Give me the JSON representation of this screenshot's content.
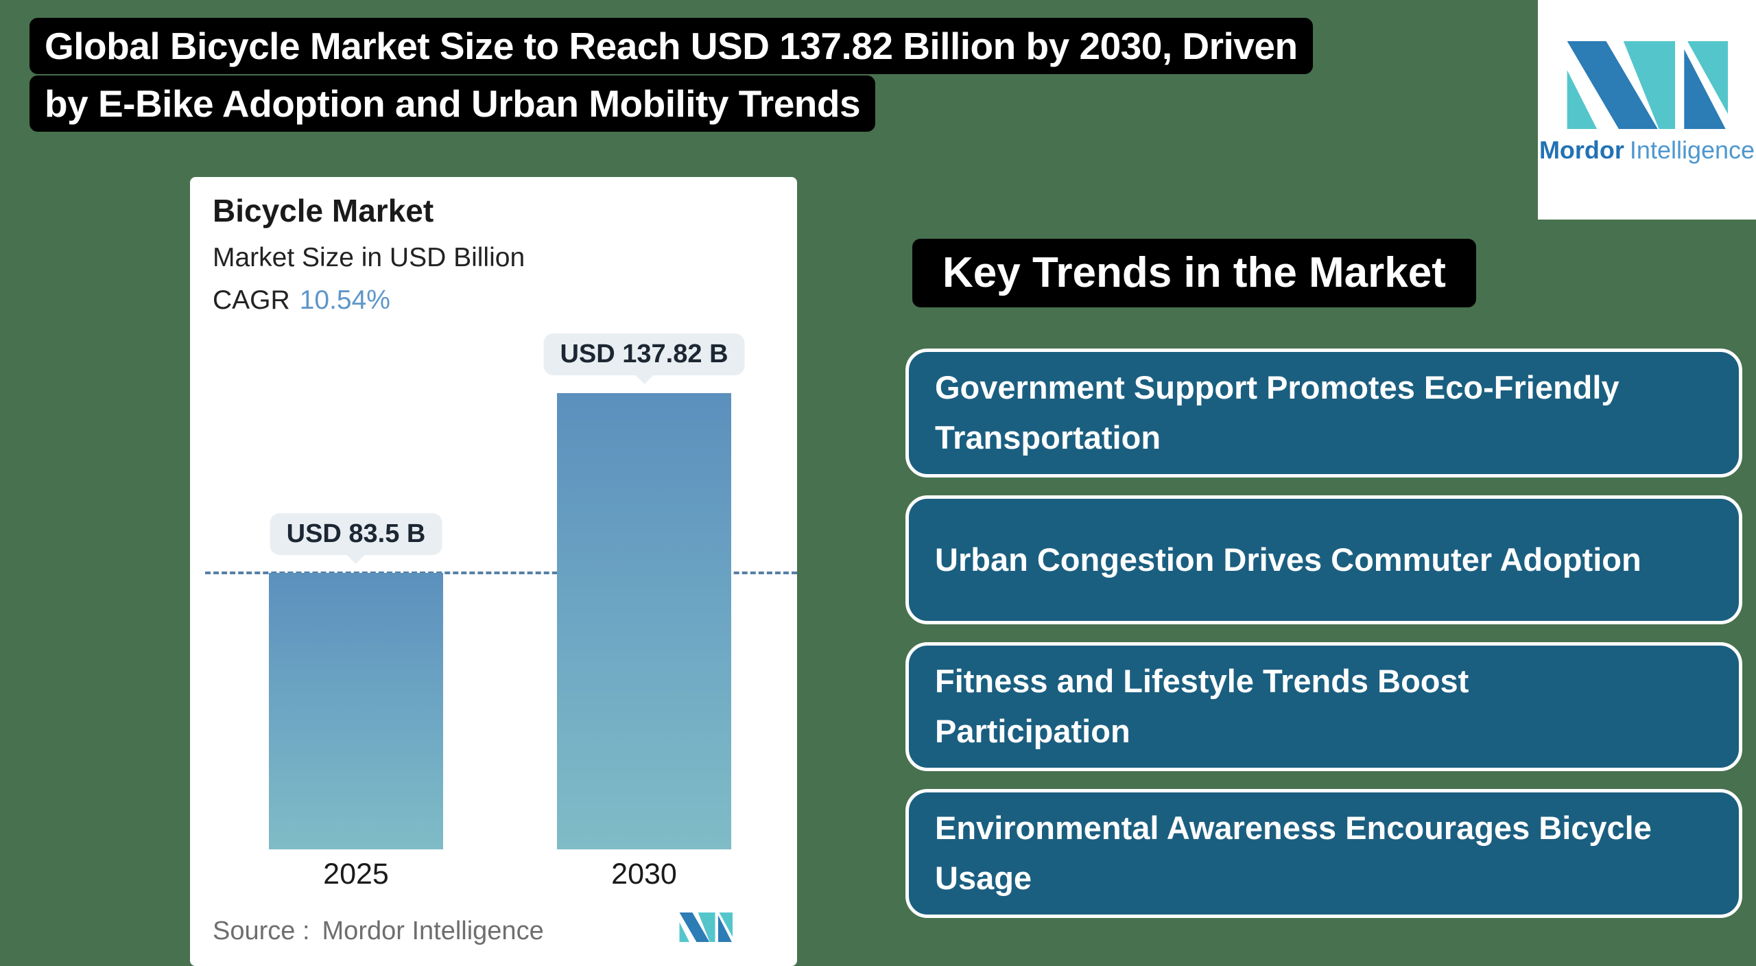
{
  "page": {
    "background_color": "#48714F"
  },
  "header": {
    "title_line1": "Global Bicycle Market Size to Reach USD 137.82 Billion by 2030, Driven",
    "title_line2": "by E-Bike Adoption and Urban Mobility Trends"
  },
  "brand": {
    "name_bold": "Mordor",
    "name_regular": "Intelligence",
    "logo_blue": "#2C7CB6",
    "logo_teal": "#54C6CB"
  },
  "chart_card": {
    "title": "Bicycle Market",
    "subtitle": "Market Size in USD Billion",
    "cagr_label": "CAGR",
    "cagr_value": "10.54%",
    "bars": [
      {
        "year": "2025",
        "label": "USD 83.5 B",
        "value": 83.5
      },
      {
        "year": "2030",
        "label": "USD 137.82 B",
        "value": 137.82
      }
    ],
    "source_label": "Source :",
    "source_name": "Mordor Intelligence"
  },
  "key_trends": {
    "heading": "Key Trends in the Market",
    "box_color": "#1B5F80",
    "items": [
      {
        "line1": "Government Support Promotes Eco-Friendly",
        "line2": "Transportation"
      },
      {
        "line1": "Urban Congestion Drives Commuter Adoption",
        "line2": ""
      },
      {
        "line1": "Fitness and Lifestyle Trends Boost",
        "line2": "Participation"
      },
      {
        "line1": "Environmental Awareness Encourages Bicycle",
        "line2": "Usage"
      }
    ]
  },
  "chart_data": {
    "type": "bar",
    "title": "Bicycle Market",
    "subtitle": "Market Size in USD Billion",
    "cagr": "10.54%",
    "categories": [
      "2025",
      "2030"
    ],
    "values": [
      83.5,
      137.82
    ],
    "value_labels": [
      "USD 83.5 B",
      "USD 137.82 B"
    ],
    "unit": "USD Billion",
    "reference_line_value": 83.5,
    "ylim": [
      0,
      145
    ],
    "grid": false,
    "legend": false,
    "source": "Mordor Intelligence",
    "bar_gradient_top": "#5C90BD",
    "bar_gradient_bottom": "#7FBCC6",
    "reference_line_color": "#567FA6"
  }
}
